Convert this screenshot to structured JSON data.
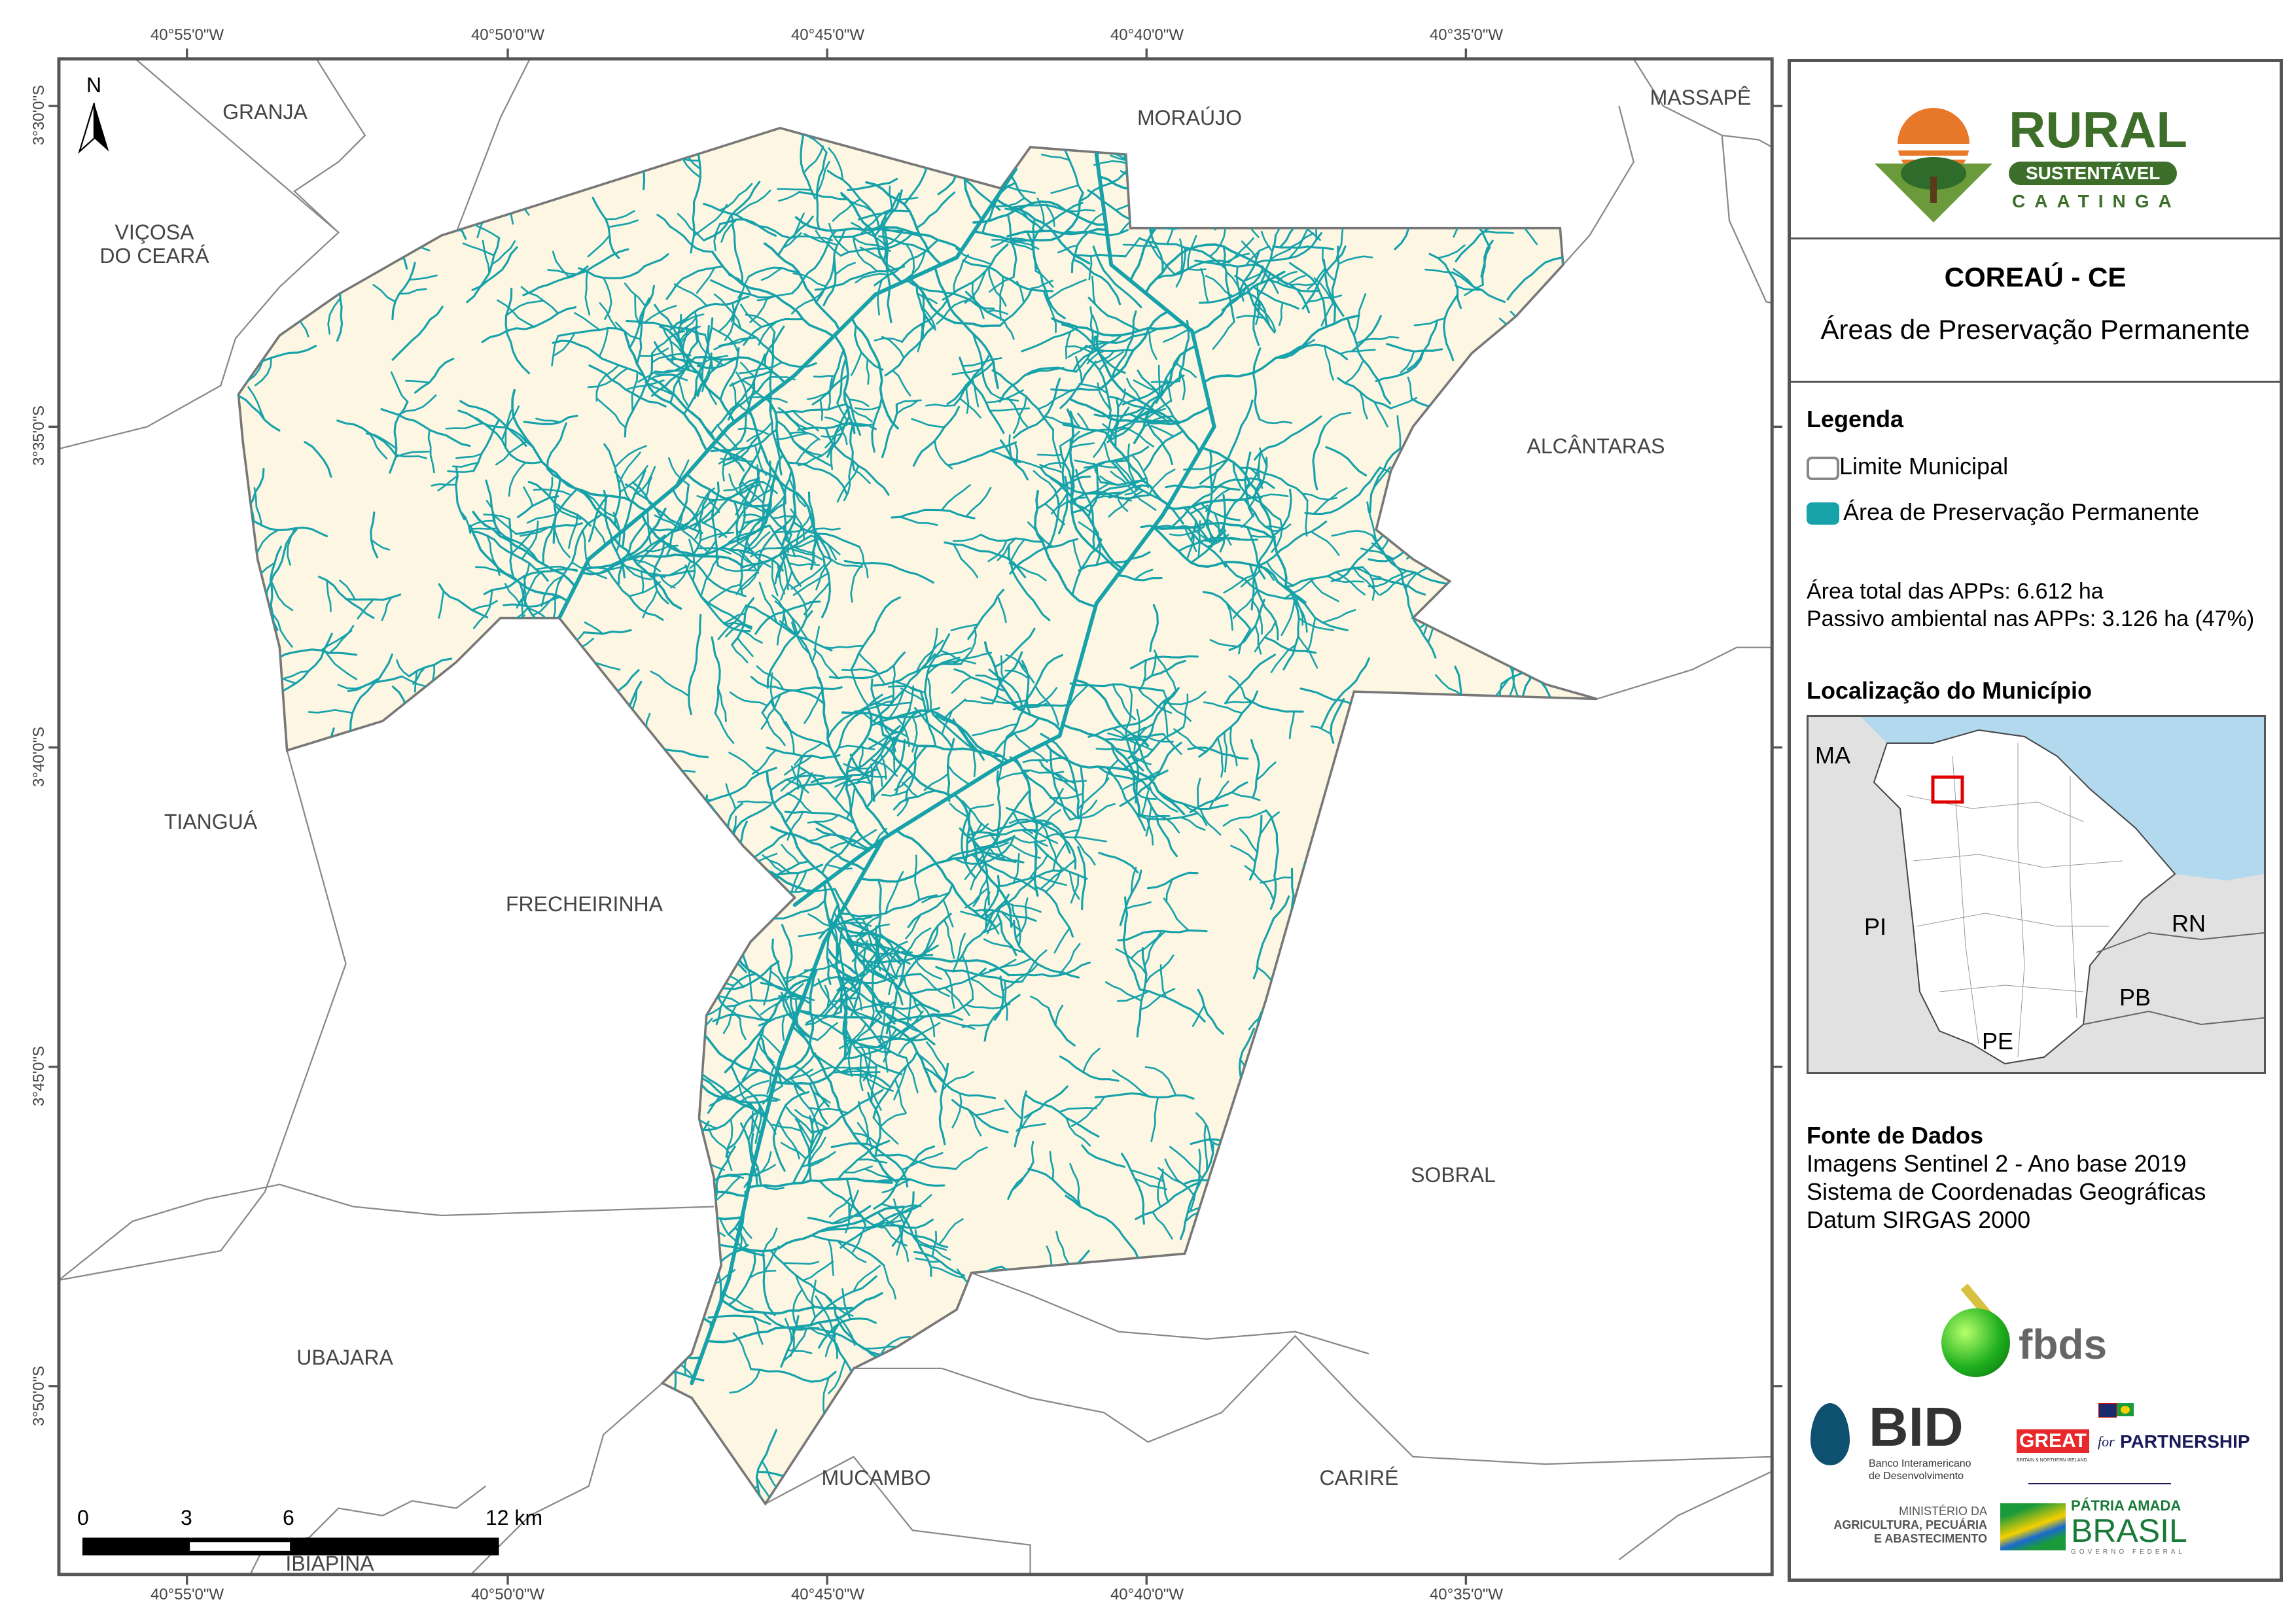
{
  "map": {
    "north_label": "N",
    "top_ticks": [
      "40°55'0\"W",
      "40°50'0\"W",
      "40°45'0\"W",
      "40°40'0\"W",
      "40°35'0\"W"
    ],
    "bottom_ticks": [
      "40°55'0\"W",
      "40°50'0\"W",
      "40°45'0\"W",
      "40°40'0\"W",
      "40°35'0\"W"
    ],
    "left_ticks": [
      "3°30'0\"S",
      "3°35'0\"S",
      "3°40'0\"S",
      "3°45'0\"S",
      "3°50'0\"S"
    ],
    "municipalities": [
      "GRANJA",
      "VIÇOSA\nDO CEARÁ",
      "MORAÚJO",
      "MASSAPÊ",
      "ALCÂNTARAS",
      "TIANGUÁ",
      "FRECHEIRINHA",
      "SOBRAL",
      "UBAJARA",
      "MUCAMBO",
      "CARIRÉ",
      "IBIAPINA"
    ],
    "scale_labels": [
      "0",
      "3",
      "6",
      "12 km"
    ],
    "colors": {
      "municipality_fill": "#fdf6e3",
      "app": "#17a2aa",
      "boundary": "#777777",
      "ocean": "#b3d9ef",
      "neighbor_states": "#e1e1e1",
      "highlight": "#e00000"
    }
  },
  "panel": {
    "logo": {
      "rural": "RURAL",
      "sustentavel": "SUSTENTÁVEL",
      "caatinga": "CAATINGA"
    },
    "title": "COREAÚ - CE",
    "subtitle": "Áreas de Preservação Permanente",
    "legend": {
      "heading": "Legenda",
      "items": [
        {
          "label": "Limite Municipal",
          "swatch": "outline"
        },
        {
          "label": "Área de Preservação Permanente",
          "swatch": "#17a2aa"
        }
      ]
    },
    "stats": [
      "Área total das APPs: 6.612 ha",
      "Passivo ambiental nas APPs: 3.126 ha (47%)"
    ],
    "location": {
      "heading": "Localização do Município",
      "states": [
        "MA",
        "PI",
        "RN",
        "PB",
        "PE"
      ]
    },
    "sources": {
      "heading": "Fonte de Dados",
      "lines": [
        "Imagens Sentinel 2 - Ano base 2019",
        "Sistema de Coordenadas Geográficas",
        "Datum SIRGAS 2000"
      ]
    },
    "partners": {
      "fbds": "fbds",
      "bid": "BID",
      "bid_sub": [
        "Banco Interamericano",
        "de Desenvolvimento"
      ],
      "great": "GREAT",
      "great_for": "for",
      "partnership": "PARTNERSHIP",
      "great_sub": "BRITAIN & NORTHERN IRELAND",
      "ministerio": [
        "MINISTÉRIO DA",
        "AGRICULTURA, PECUÁRIA",
        "E ABASTECIMENTO"
      ],
      "brasil": [
        "PÁTRIA AMADA",
        "BRASIL",
        "GOVERNO FEDERAL"
      ]
    }
  }
}
